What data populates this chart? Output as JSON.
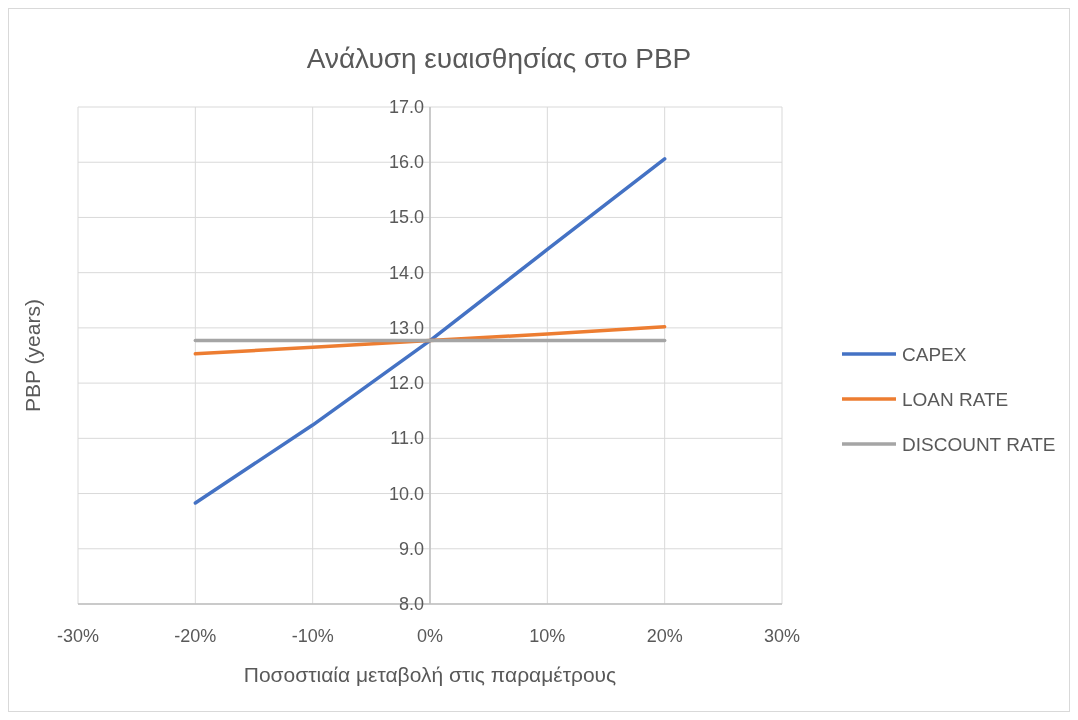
{
  "chart_data": {
    "type": "line",
    "title": "Ανάλυση ευαισθησίας στο PBP",
    "xlabel": "Ποσοστιαία μεταβολή στις παραμέτρους",
    "ylabel": "PBP (years)",
    "x": [
      -20,
      -10,
      0,
      10,
      20
    ],
    "series": [
      {
        "name": "CAPEX",
        "color": "#4472c4",
        "values": [
          9.83,
          11.24,
          12.77,
          14.42,
          16.06
        ]
      },
      {
        "name": "LOAN RATE",
        "color": "#ed7d31",
        "values": [
          12.53,
          12.65,
          12.77,
          12.89,
          13.02
        ]
      },
      {
        "name": "DISCOUNT RATE",
        "color": "#a5a5a5",
        "values": [
          12.77,
          12.77,
          12.77,
          12.77,
          12.77
        ]
      }
    ],
    "xlim": [
      -30,
      30
    ],
    "xticks": [
      {
        "value": -30,
        "label": "-30%"
      },
      {
        "value": -20,
        "label": "-20%"
      },
      {
        "value": -10,
        "label": "-10%"
      },
      {
        "value": 0,
        "label": "0%"
      },
      {
        "value": 10,
        "label": "10%"
      },
      {
        "value": 20,
        "label": "20%"
      },
      {
        "value": 30,
        "label": "30%"
      }
    ],
    "ylim": [
      8,
      17
    ],
    "yticks": [
      {
        "value": 8,
        "label": "8.0"
      },
      {
        "value": 9,
        "label": "9.0"
      },
      {
        "value": 10,
        "label": "10.0"
      },
      {
        "value": 11,
        "label": "11.0"
      },
      {
        "value": 12,
        "label": "12.0"
      },
      {
        "value": 13,
        "label": "13.0"
      },
      {
        "value": 14,
        "label": "14.0"
      },
      {
        "value": 15,
        "label": "15.0"
      },
      {
        "value": 16,
        "label": "16.0"
      },
      {
        "value": 17,
        "label": "17.0"
      }
    ],
    "grid": true,
    "legend": "right",
    "marker": "none",
    "line_style": "solid"
  }
}
